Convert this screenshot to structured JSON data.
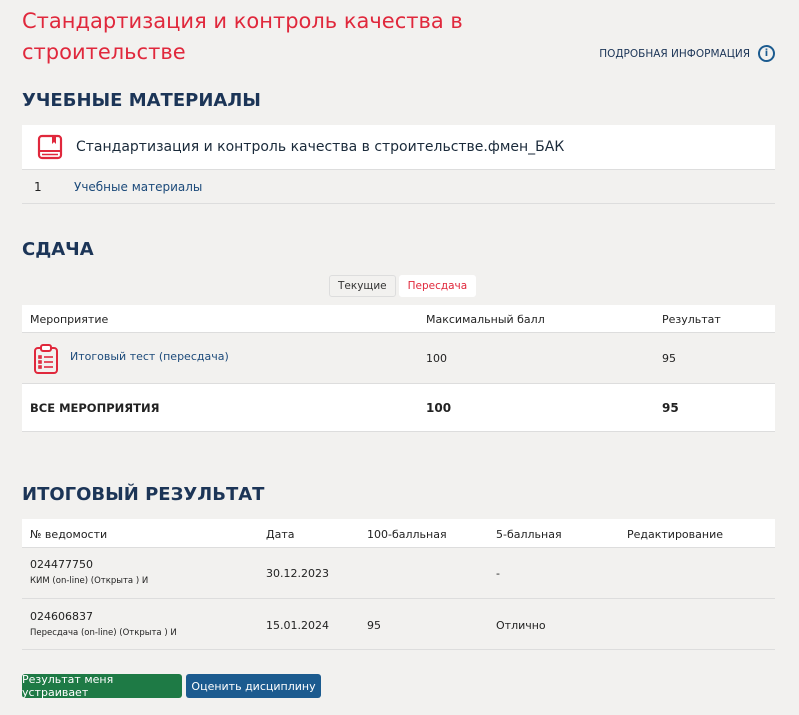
{
  "page_title": "Стандартизация и контроль качества в строительстве",
  "info_link": "ПОДРОБНАЯ ИНФОРМАЦИЯ",
  "materials": {
    "heading": "УЧЕБНЫЕ МАТЕРИАЛЫ",
    "course": "Стандартизация и контроль качества в строительстве.фмен_БАК",
    "items": [
      {
        "num": "1",
        "label": "Учебные материалы"
      }
    ]
  },
  "exam": {
    "heading": "СДАЧА",
    "tabs": [
      "Текущие",
      "Пересдача"
    ],
    "active_tab": "Пересдача",
    "columns": [
      "Мероприятие",
      "Максимальный балл",
      "Результат"
    ],
    "rows": [
      {
        "name": "Итоговый тест (пересдача)",
        "max": "100",
        "result": "95"
      }
    ],
    "total": {
      "label": "ВСЕ МЕРОПРИЯТИЯ",
      "max": "100",
      "result": "95"
    }
  },
  "final": {
    "heading": "ИТОГОВЫЙ РЕЗУЛЬТАТ",
    "columns": [
      "№ ведомости",
      "Дата",
      "100-балльная",
      "5-балльная",
      "Редактирование"
    ],
    "rows": [
      {
        "id": "024477750",
        "sub": "КИМ (on-line) (Открыта ) И",
        "date": "30.12.2023",
        "score100": "",
        "score5": "-"
      },
      {
        "id": "024606837",
        "sub": "Пересдача (on-line) (Открыта ) И",
        "date": "15.01.2024",
        "score100": "95",
        "score5": "Отлично"
      }
    ]
  },
  "buttons": {
    "accept": "Результат меня устраивает",
    "rate": "Оценить дисциплину"
  },
  "colors": {
    "accent": "#e0283c",
    "navy": "#1c3557",
    "green": "#1e7a45",
    "blue": "#1c5b8f"
  }
}
